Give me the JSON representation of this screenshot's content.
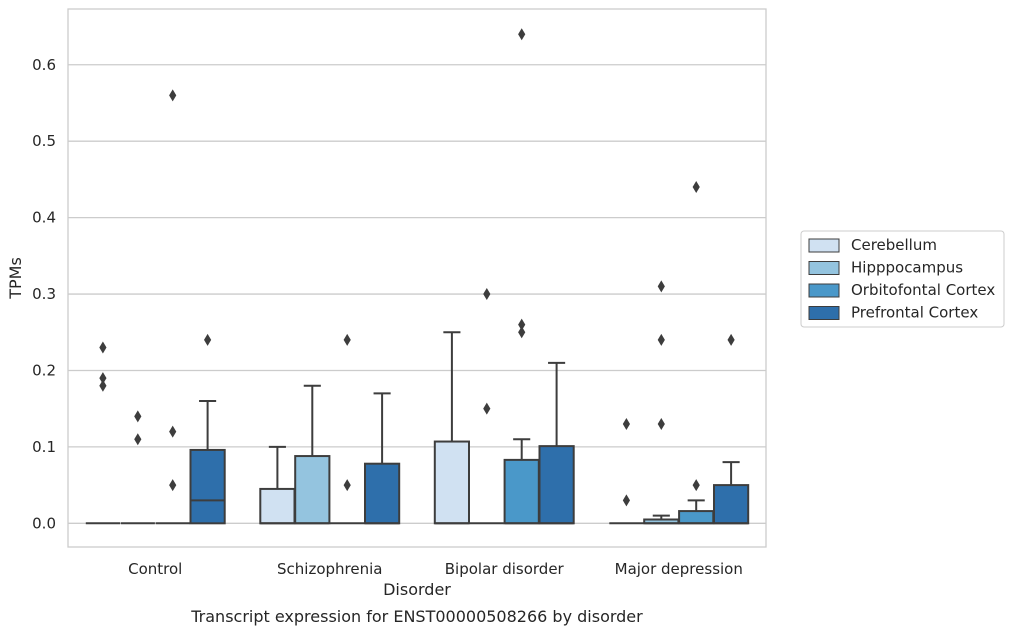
{
  "caption": "Transcript expression for ENST00000508266 by disorder",
  "chart_data": {
    "type": "box",
    "xlabel": "Disorder",
    "ylabel": "TPMs",
    "ylim": [
      -0.031,
      0.673
    ],
    "yticks": [
      "0.0",
      "0.1",
      "0.2",
      "0.3",
      "0.4",
      "0.5",
      "0.6"
    ],
    "ytick_values": [
      0.0,
      0.1,
      0.2,
      0.3,
      0.4,
      0.5,
      0.6
    ],
    "grid": "horizontal",
    "legend_position": "right",
    "categories": [
      "Control",
      "Schizophrenia",
      "Bipolar disorder",
      "Major depression"
    ],
    "series": [
      {
        "name": "Cerebellum",
        "color": "#d0e1f2",
        "boxes": [
          {
            "q1": 0,
            "median": 0,
            "q3": 0,
            "whislo": 0,
            "whishi": 0,
            "fliers": [
              0.23,
              0.19,
              0.18
            ]
          },
          {
            "q1": 0,
            "median": 0,
            "q3": 0.045,
            "whislo": 0,
            "whishi": 0.1,
            "fliers": []
          },
          {
            "q1": 0,
            "median": 0,
            "q3": 0.107,
            "whislo": 0,
            "whishi": 0.25,
            "fliers": []
          },
          {
            "q1": 0,
            "median": 0,
            "q3": 0,
            "whislo": 0,
            "whishi": 0,
            "fliers": [
              0.13,
              0.03
            ]
          }
        ]
      },
      {
        "name": "Hipppocampus",
        "color": "#94c4df",
        "boxes": [
          {
            "q1": 0,
            "median": 0,
            "q3": 0,
            "whislo": 0,
            "whishi": 0,
            "fliers": [
              0.14,
              0.11
            ]
          },
          {
            "q1": 0,
            "median": 0,
            "q3": 0.088,
            "whislo": 0,
            "whishi": 0.18,
            "fliers": []
          },
          {
            "q1": 0,
            "median": 0,
            "q3": 0,
            "whislo": 0,
            "whishi": 0,
            "fliers": [
              0.3,
              0.15
            ]
          },
          {
            "q1": 0,
            "median": 0,
            "q3": 0.005,
            "whislo": 0,
            "whishi": 0.01,
            "fliers": [
              0.31,
              0.24,
              0.13
            ]
          }
        ]
      },
      {
        "name": "Orbitofontal Cortex",
        "color": "#4a98c9",
        "boxes": [
          {
            "q1": 0,
            "median": 0,
            "q3": 0,
            "whislo": 0,
            "whishi": 0,
            "fliers": [
              0.56,
              0.12,
              0.05
            ]
          },
          {
            "q1": 0,
            "median": 0,
            "q3": 0,
            "whislo": 0,
            "whishi": 0,
            "fliers": [
              0.24,
              0.05
            ]
          },
          {
            "q1": 0,
            "median": 0,
            "q3": 0.083,
            "whislo": 0,
            "whishi": 0.11,
            "fliers": [
              0.64,
              0.26,
              0.25
            ]
          },
          {
            "q1": 0,
            "median": 0,
            "q3": 0.016,
            "whislo": 0,
            "whishi": 0.03,
            "fliers": [
              0.44,
              0.05
            ]
          }
        ]
      },
      {
        "name": "Prefrontal Cortex",
        "color": "#2e6fab",
        "boxes": [
          {
            "q1": 0,
            "median": 0.03,
            "q3": 0.096,
            "whislo": 0,
            "whishi": 0.16,
            "fliers": [
              0.24
            ]
          },
          {
            "q1": 0,
            "median": 0,
            "q3": 0.078,
            "whislo": 0,
            "whishi": 0.17,
            "fliers": []
          },
          {
            "q1": 0,
            "median": 0,
            "q3": 0.101,
            "whislo": 0,
            "whishi": 0.21,
            "fliers": []
          },
          {
            "q1": 0,
            "median": 0,
            "q3": 0.05,
            "whislo": 0,
            "whishi": 0.08,
            "fliers": [
              0.24
            ]
          }
        ]
      }
    ]
  }
}
